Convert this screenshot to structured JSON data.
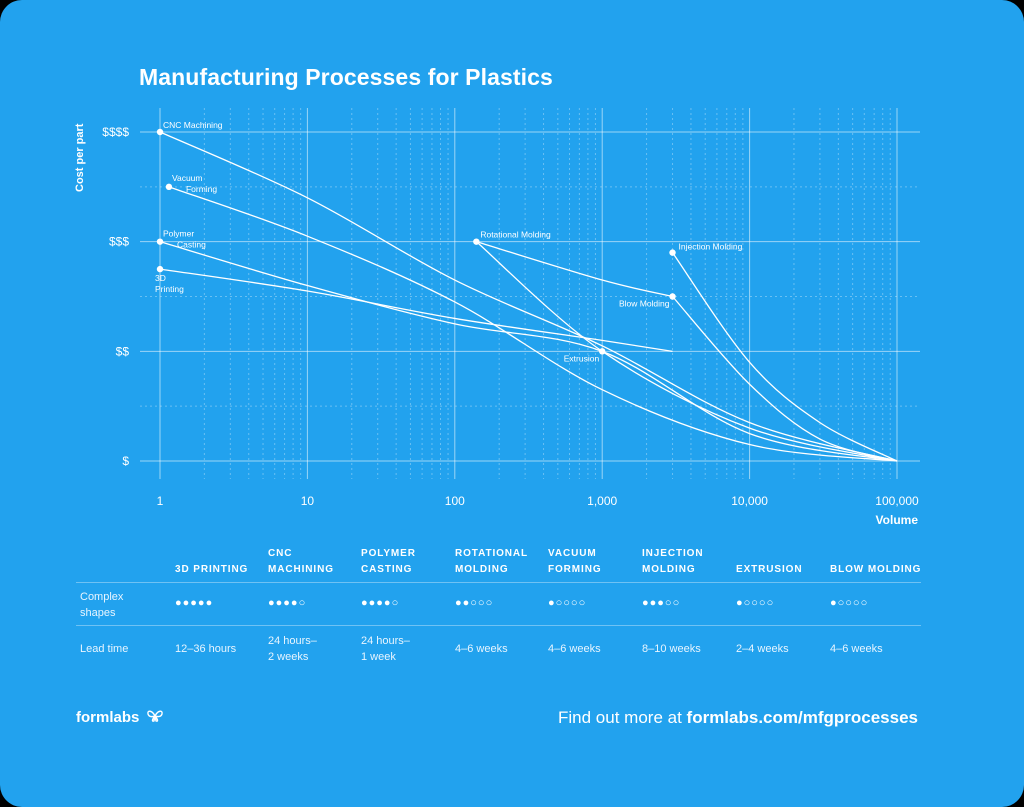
{
  "title": "Manufacturing Processes for Plastics",
  "chart_data": {
    "type": "line",
    "title": "Manufacturing Processes for Plastics",
    "xlabel": "Volume",
    "ylabel": "Cost per part",
    "x_scale": "log",
    "x_ticks": [
      {
        "value": 1,
        "label": "1"
      },
      {
        "value": 10,
        "label": "10"
      },
      {
        "value": 100,
        "label": "100"
      },
      {
        "value": 1000,
        "label": "1,000"
      },
      {
        "value": 10000,
        "label": "10,000"
      },
      {
        "value": 100000,
        "label": "100,000"
      }
    ],
    "y_ticks": [
      {
        "value": 1,
        "label": "$"
      },
      {
        "value": 2,
        "label": "$$"
      },
      {
        "value": 3,
        "label": "$$$"
      },
      {
        "value": 4,
        "label": "$$$$"
      }
    ],
    "xlim": [
      1,
      100000
    ],
    "ylim": [
      1,
      4
    ],
    "series": [
      {
        "name": "CNC Machining",
        "x": [
          1,
          10,
          100,
          1000,
          10000,
          100000
        ],
        "y": [
          4.0,
          3.4,
          2.65,
          2.05,
          1.35,
          1.0
        ]
      },
      {
        "name": "Vacuum Forming",
        "x": [
          1.15,
          10,
          100,
          1000,
          10000,
          100000
        ],
        "y": [
          3.5,
          3.05,
          2.45,
          1.65,
          1.15,
          1.0
        ]
      },
      {
        "name": "Polymer Casting",
        "x": [
          1,
          10,
          100,
          1000,
          10000,
          100000
        ],
        "y": [
          3.0,
          2.6,
          2.25,
          2.0,
          1.25,
          1.0
        ]
      },
      {
        "name": "3D Printing",
        "x": [
          1,
          10,
          100,
          1000,
          3000
        ],
        "y": [
          2.75,
          2.55,
          2.3,
          2.1,
          2.0
        ]
      },
      {
        "name": "Rotational Molding",
        "x": [
          140,
          1000,
          3000
        ],
        "y": [
          3.0,
          2.65,
          2.5
        ]
      },
      {
        "name": "Injection Molding",
        "x": [
          3000,
          10000,
          30000,
          100000
        ],
        "y": [
          2.9,
          1.9,
          1.35,
          1.0
        ]
      },
      {
        "name": "Blow Molding",
        "x": [
          3000,
          10000,
          30000,
          100000
        ],
        "y": [
          2.5,
          1.7,
          1.2,
          1.0
        ]
      },
      {
        "name": "Extrusion",
        "x": [
          140,
          1000,
          10000,
          100000
        ],
        "y": [
          3.0,
          2.0,
          1.3,
          1.0
        ]
      }
    ],
    "point_labels": [
      {
        "text": "CNC Machining",
        "x": 1,
        "y": 4.0
      },
      {
        "text": "Vacuum Forming",
        "x": 1.15,
        "y": 3.5
      },
      {
        "text": "Polymer Casting",
        "x": 1,
        "y": 3.0
      },
      {
        "text": "3D Printing",
        "x": 1,
        "y": 2.75
      },
      {
        "text": "Rotational Molding",
        "x": 140,
        "y": 3.0
      },
      {
        "text": "Injection Molding",
        "x": 3000,
        "y": 2.9
      },
      {
        "text": "Blow Molding",
        "x": 3000,
        "y": 2.5
      },
      {
        "text": "Extrusion",
        "x": 1000,
        "y": 2.0
      }
    ]
  },
  "table": {
    "columns": [
      "3D PRINTING",
      "CNC MACHINING",
      "POLYMER CASTING",
      "ROTATIONAL MOLDING",
      "VACUUM FORMING",
      "INJECTION MOLDING",
      "EXTRUSION",
      "BLOW MOLDING"
    ],
    "rows": [
      {
        "label": "Complex shapes",
        "type": "rating",
        "max": 5,
        "values": [
          5,
          4,
          4,
          2,
          1,
          3,
          1,
          1
        ]
      },
      {
        "label": "Lead time",
        "type": "text",
        "values": [
          "12–36 hours",
          "24 hours–\n2 weeks",
          "24 hours–\n1 week",
          "4–6 weeks",
          "4–6 weeks",
          "8–10 weeks",
          "2–4 weeks",
          "4–6 weeks"
        ]
      }
    ]
  },
  "footer": {
    "brand": "formlabs",
    "cta_prefix": "Find out more at ",
    "cta_link": "formlabs.com/mfgprocesses"
  },
  "colors": {
    "background": "#22a2ee",
    "foreground": "#ffffff"
  }
}
